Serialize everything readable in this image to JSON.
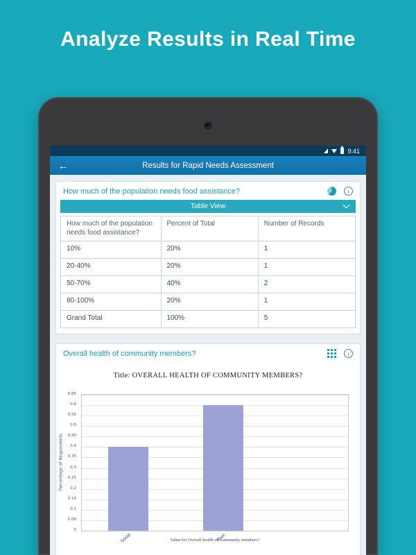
{
  "hero": {
    "title": "Analyze Results in Real Time"
  },
  "tablet": {
    "status": {
      "time": "9:41"
    },
    "app_bar": {
      "title": "Results for Rapid Needs Assessment",
      "back_icon": "back-arrow"
    }
  },
  "cards": {
    "food": {
      "question": "How much of the population needs food assistance?",
      "view_selector": "Table View",
      "icons": [
        "pie-chart-icon",
        "info-icon"
      ],
      "table": {
        "headers": [
          "How much of the population needs food assistance?",
          "Percent of Total",
          "Number of Records"
        ],
        "rows": [
          [
            "10%",
            "20%",
            "1"
          ],
          [
            "20-40%",
            "20%",
            "1"
          ],
          [
            "50-70%",
            "40%",
            "2"
          ],
          [
            "80-100%",
            "20%",
            "1"
          ],
          [
            "Grand Total",
            "100%",
            "5"
          ]
        ]
      }
    },
    "health": {
      "question": "Overall health of community members?",
      "icons": [
        "table-grid-icon",
        "info-icon"
      ]
    }
  },
  "chart_data": {
    "type": "bar",
    "title": "Title: OVERALL HEALTH OF COMMUNITY MEMBERS?",
    "categories": [
      "Good",
      "Poor"
    ],
    "values": [
      0.4,
      0.6
    ],
    "ylabel": "Percentage of Respondents",
    "xlabel": "Value for Overall health of community members?",
    "ylim": [
      0,
      0.65
    ],
    "ytick_step": 0.05,
    "grid": true,
    "legend": "none",
    "bar_color": "#9ba3d6"
  },
  "colors": {
    "page_background": "#18a9bb",
    "status_bar": "#0b3a5c",
    "app_bar": "#1478b2",
    "accent_teal": "#1b9cb0",
    "table_view_bar": "#2aa9be",
    "table_border": "#c2d6e4",
    "bar_fill": "#9ba3d6"
  }
}
